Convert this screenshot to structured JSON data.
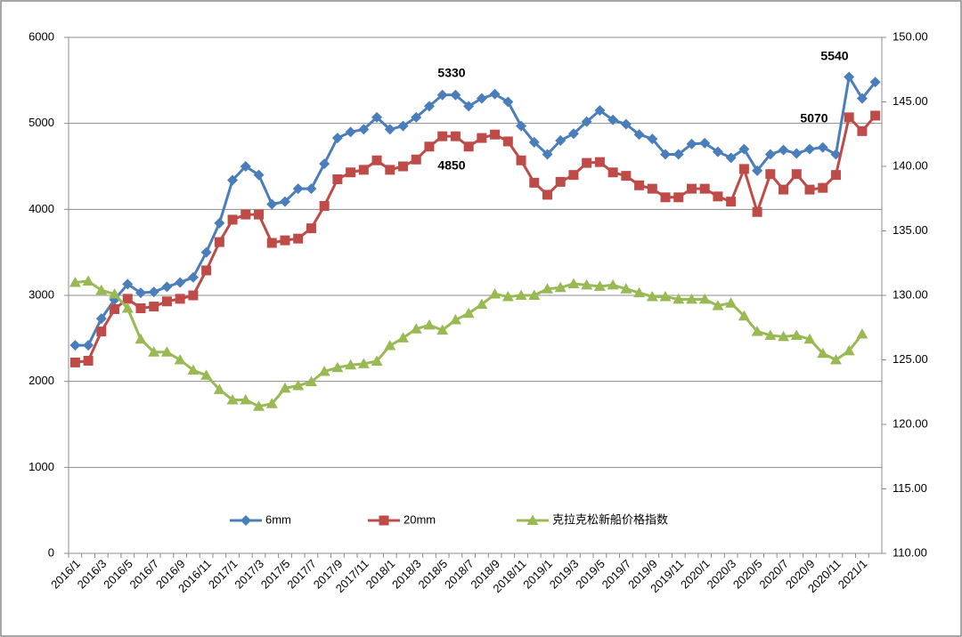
{
  "chart_data": {
    "type": "line",
    "categories": [
      "2016/1",
      null,
      "2016/3",
      null,
      "2016/5",
      null,
      "2016/7",
      null,
      "2016/9",
      null,
      "2016/11",
      null,
      "2017/1",
      null,
      "2017/3",
      null,
      "2017/5",
      null,
      "2017/7",
      null,
      "2017/9",
      null,
      "2017/11",
      null,
      "2018/1",
      null,
      "2018/3",
      null,
      "2018/5",
      null,
      "2018/7",
      null,
      "2018/9",
      null,
      "2018/11",
      null,
      "2019/1",
      null,
      "2019/3",
      null,
      "2019/5",
      null,
      "2019/7",
      null,
      "2019/9",
      null,
      "2019/11",
      null,
      "2020/1",
      null,
      "2020/3",
      null,
      "2020/5",
      null,
      "2020/7",
      null,
      "2020/9",
      null,
      "2020/11",
      null,
      "2021/1",
      null
    ],
    "series": [
      {
        "name": "6mm",
        "color": "#4a7ebb",
        "marker": "diamond",
        "values": [
          2420,
          2420,
          2730,
          2950,
          3130,
          3030,
          3040,
          3100,
          3150,
          3210,
          3500,
          3840,
          4340,
          4500,
          4400,
          4060,
          4090,
          4240,
          4240,
          4530,
          4830,
          4900,
          4930,
          5070,
          4930,
          4970,
          5070,
          5200,
          5330,
          5330,
          5200,
          5290,
          5340,
          5250,
          4970,
          4780,
          4640,
          4800,
          4880,
          5020,
          5150,
          5040,
          4990,
          4870,
          4820,
          4640,
          4640,
          4760,
          4770,
          4670,
          4600,
          4700,
          4450,
          4640,
          4690,
          4650,
          4700,
          4720,
          4640,
          5540,
          5290,
          5480
        ]
      },
      {
        "name": "20mm",
        "color": "#be4b48",
        "marker": "square",
        "values": [
          2220,
          2240,
          2580,
          2840,
          2960,
          2850,
          2870,
          2930,
          2960,
          3000,
          3290,
          3620,
          3880,
          3940,
          3940,
          3610,
          3640,
          3660,
          3780,
          4040,
          4350,
          4430,
          4460,
          4570,
          4460,
          4500,
          4580,
          4730,
          4850,
          4850,
          4730,
          4830,
          4870,
          4790,
          4570,
          4310,
          4170,
          4320,
          4400,
          4540,
          4550,
          4430,
          4390,
          4280,
          4240,
          4140,
          4140,
          4240,
          4240,
          4150,
          4090,
          4470,
          3970,
          4410,
          4230,
          4410,
          4230,
          4250,
          4400,
          5070,
          4910,
          5090
        ]
      },
      {
        "name": "克拉克松新船价格指数",
        "color": "#98b954",
        "marker": "triangle",
        "axis": "y2",
        "values": [
          131.0,
          131.1,
          130.4,
          130.1,
          129.0,
          126.6,
          125.6,
          125.6,
          125.0,
          124.2,
          123.8,
          122.7,
          121.9,
          121.9,
          121.4,
          121.6,
          122.8,
          123.0,
          123.3,
          124.1,
          124.4,
          124.6,
          124.7,
          124.9,
          126.1,
          126.7,
          127.4,
          127.7,
          127.3,
          128.1,
          128.6,
          129.3,
          130.1,
          129.9,
          130.0,
          130.0,
          130.5,
          130.6,
          130.9,
          130.8,
          130.7,
          130.8,
          130.5,
          130.2,
          129.9,
          129.9,
          129.7,
          129.7,
          129.7,
          129.2,
          129.4,
          128.4,
          127.2,
          126.9,
          126.8,
          126.9,
          126.6,
          125.5,
          125.0,
          125.7,
          127.0,
          null
        ]
      }
    ],
    "ylim": [
      0,
      6000
    ],
    "yticks": [
      0,
      1000,
      2000,
      3000,
      4000,
      5000,
      6000
    ],
    "y2lim": [
      110,
      150
    ],
    "y2ticks": [
      {
        "value": 110,
        "label": "110.00"
      },
      {
        "value": 115,
        "label": "115.00"
      },
      {
        "value": 120,
        "label": "120.00"
      },
      {
        "value": 125,
        "label": "125.00"
      },
      {
        "value": 130,
        "label": "130.00"
      },
      {
        "value": 135,
        "label": "135.00"
      },
      {
        "value": 140,
        "label": "140.00"
      },
      {
        "value": 145,
        "label": "145.00"
      },
      {
        "value": 150,
        "label": "150.00"
      }
    ],
    "grid": true,
    "legend": "bottom",
    "annotations": [
      "5330",
      "4850",
      "5540",
      "5070"
    ]
  }
}
